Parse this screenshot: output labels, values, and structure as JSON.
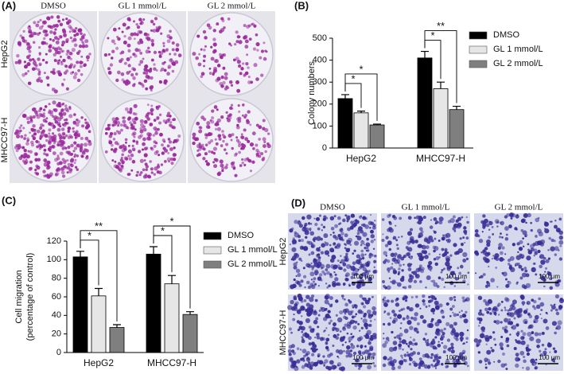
{
  "panels": {
    "A": {
      "label": "(A)",
      "columns": [
        "DMSO",
        "GL 1 mmol/L",
        "GL 2 mmol/L"
      ],
      "rows": [
        "HepG2",
        "MHCC97-H"
      ]
    },
    "D": {
      "label": "(D)",
      "columns": [
        "DMSO",
        "GL 1 mmol/L",
        "GL 2 mmol/L"
      ],
      "rows": [
        "HepG2",
        "MHCC97-H"
      ],
      "scale_bar": "100 μm"
    }
  },
  "chart_data": [
    {
      "panel_label": "(B)",
      "type": "bar",
      "y_label": [
        "Colony numbers"
      ],
      "categories": [
        "HepG2",
        "MHCC97-H"
      ],
      "series": [
        {
          "name": "DMSO",
          "color": "#000000",
          "values": [
            225,
            410
          ],
          "errors": [
            18,
            30
          ]
        },
        {
          "name": "GL 1 mmol/L",
          "color": "#e6e6e6",
          "values": [
            160,
            270
          ],
          "errors": [
            8,
            30
          ]
        },
        {
          "name": "GL 2 mmol/L",
          "color": "#7f7f7f",
          "values": [
            105,
            175
          ],
          "errors": [
            4,
            15
          ]
        }
      ],
      "ylim": [
        0,
        500
      ],
      "yticks": [
        0,
        100,
        200,
        300,
        400,
        500
      ],
      "significance": [
        [
          "*",
          "*"
        ],
        [
          "*",
          "**"
        ]
      ]
    },
    {
      "panel_label": "(C)",
      "type": "bar",
      "y_label": [
        "Cell migration",
        "(percentage of control)"
      ],
      "categories": [
        "HepG2",
        "MHCC97-H"
      ],
      "series": [
        {
          "name": "DMSO",
          "color": "#000000",
          "values": [
            103,
            106
          ],
          "errors": [
            6,
            8
          ]
        },
        {
          "name": "GL 1 mmol/L",
          "color": "#e6e6e6",
          "values": [
            61,
            74
          ],
          "errors": [
            8,
            9
          ]
        },
        {
          "name": "GL 2 mmol/L",
          "color": "#7f7f7f",
          "values": [
            27,
            41
          ],
          "errors": [
            3,
            3
          ]
        }
      ],
      "ylim": [
        0,
        120
      ],
      "yticks": [
        0,
        20,
        40,
        60,
        80,
        100,
        120
      ],
      "significance": [
        [
          "*",
          "**"
        ],
        [
          "*",
          "*"
        ]
      ]
    }
  ]
}
